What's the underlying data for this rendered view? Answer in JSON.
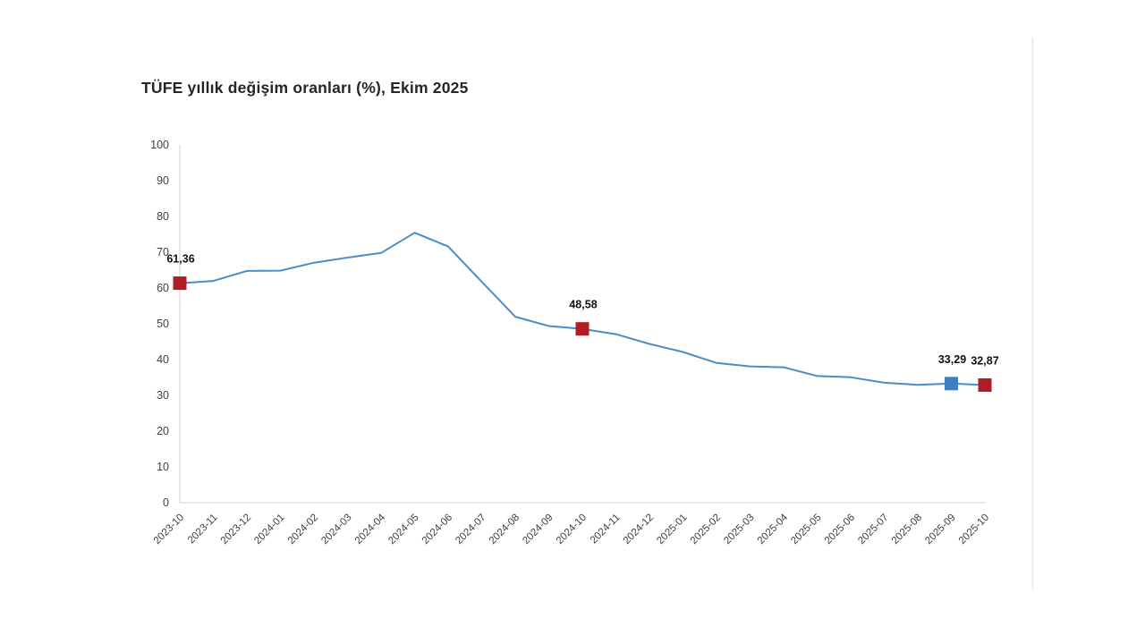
{
  "page": {
    "background": "#ffffff",
    "divider_color": "#e7e7e7"
  },
  "chart_data": {
    "type": "line",
    "title": "TÜFE yıllık değişim oranları (%), Ekim 2025",
    "xlabel": "",
    "ylabel": "",
    "ylim": [
      0,
      100
    ],
    "ytick_step": 10,
    "grid": false,
    "legend": "none",
    "axis_color": "#d9d9d9",
    "line_color": "#4a8ec7",
    "categories": [
      "2023-10",
      "2023-11",
      "2023-12",
      "2024-01",
      "2024-02",
      "2024-03",
      "2024-04",
      "2024-05",
      "2024-06",
      "2024-07",
      "2024-08",
      "2024-09",
      "2024-10",
      "2024-11",
      "2024-12",
      "2025-01",
      "2025-02",
      "2025-03",
      "2025-04",
      "2025-05",
      "2025-06",
      "2025-07",
      "2025-08",
      "2025-09",
      "2025-10"
    ],
    "series": [
      {
        "name": "TÜFE yıllık değişim oranı (%)",
        "values": [
          61.36,
          61.98,
          64.77,
          64.86,
          67.07,
          68.5,
          69.8,
          75.45,
          71.6,
          61.78,
          51.97,
          49.38,
          48.58,
          47.09,
          44.38,
          42.12,
          39.05,
          38.1,
          37.86,
          35.41,
          35.05,
          33.52,
          32.95,
          33.29,
          32.87
        ]
      }
    ],
    "labeled_points": [
      {
        "category": "2023-10",
        "value": 61.36,
        "label": "61,36",
        "marker_color": "#b01e24"
      },
      {
        "category": "2024-10",
        "value": 48.58,
        "label": "48,58",
        "marker_color": "#b01e24"
      },
      {
        "category": "2025-09",
        "value": 33.29,
        "label": "33,29",
        "marker_color": "#3d7fc0"
      },
      {
        "category": "2025-10",
        "value": 32.87,
        "label": "32,87",
        "marker_color": "#b01e24"
      }
    ]
  }
}
